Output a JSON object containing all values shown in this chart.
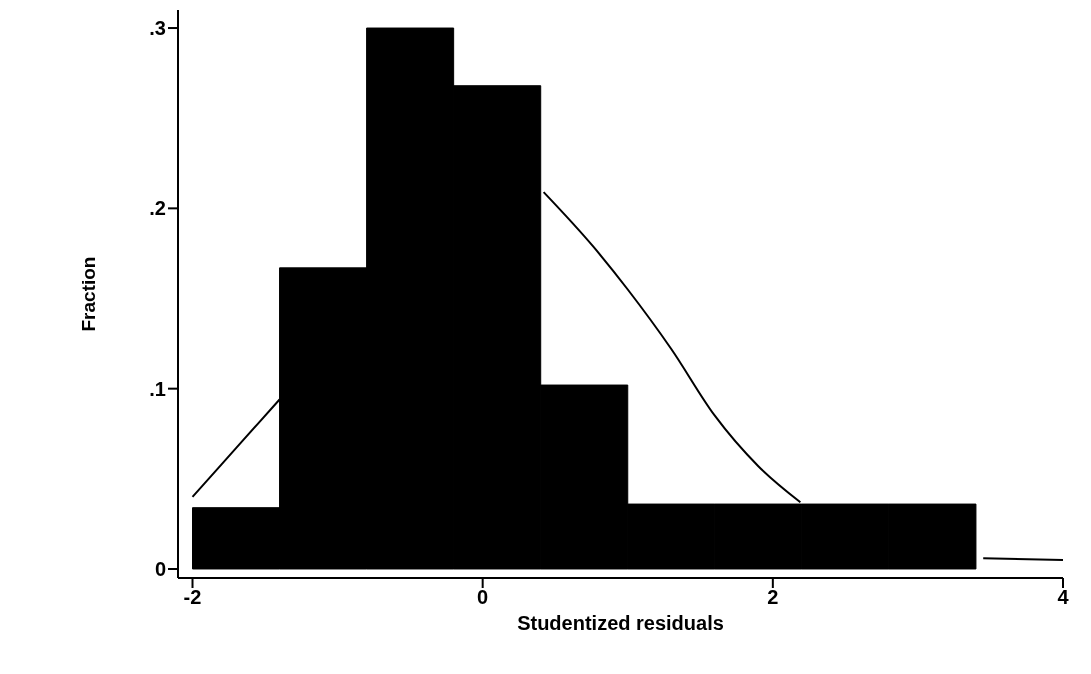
{
  "chart_data": {
    "type": "histogram",
    "xlabel": "Studentized residuals",
    "ylabel": "Fraction",
    "xlim": [
      -2.1,
      4
    ],
    "ylim": [
      -0.005,
      0.31
    ],
    "xticks": [
      -2,
      0,
      2,
      4
    ],
    "yticks": [
      0,
      {
        "value": 0.1,
        "label": ".1"
      },
      {
        "value": 0.2,
        "label": ".2"
      },
      {
        "value": 0.3,
        "label": ".3"
      }
    ],
    "grid": false,
    "series": [
      {
        "color": "#000000",
        "bins": [
          -2,
          -1.4,
          -0.8,
          -0.2,
          0.4,
          1.0,
          1.6,
          2.2,
          2.8,
          3.4
        ],
        "values": [
          0.034,
          0.167,
          0.3,
          0.268,
          0.102,
          0.036,
          0.036,
          0.036,
          0.036
        ]
      },
      {
        "type": "line",
        "color": "#000000",
        "marker": "none",
        "x": [
          -2,
          -1.7,
          -1.4,
          0,
          0.42,
          0.76,
          1.0,
          1.3,
          1.6,
          1.9,
          2.19,
          2.8,
          3.45,
          4.0
        ],
        "values": [
          0.04,
          0.067,
          0.094,
          null,
          0.209,
          0.179,
          0.155,
          0.122,
          0.085,
          0.057,
          0.037,
          null,
          0.006,
          0.005
        ]
      }
    ]
  }
}
